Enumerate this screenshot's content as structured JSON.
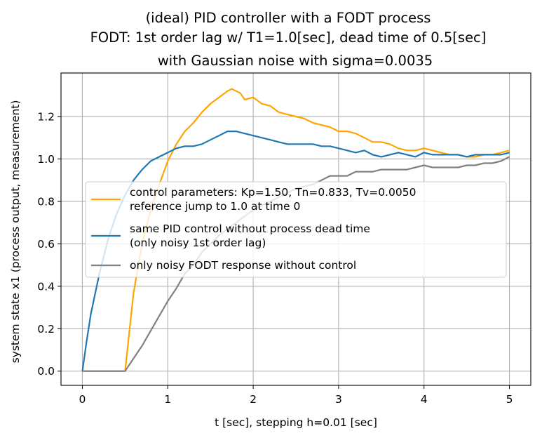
{
  "chart_data": {
    "type": "line",
    "title_lines": [
      "(ideal) PID controller with a FODT process",
      "FODT: 1st order lag w/ T1=1.0[sec], dead time of 0.5[sec]",
      "with Gaussian noise with sigma=0.0035"
    ],
    "xlabel": "t [sec], stepping h=0.01 [sec]",
    "ylabel": "system state x1 (process output, measurement)",
    "xlim": [
      -0.25,
      5.25
    ],
    "ylim": [
      -0.067,
      1.405
    ],
    "xticks": [
      0,
      1,
      2,
      3,
      4,
      5
    ],
    "xtick_labels": [
      "0",
      "1",
      "2",
      "3",
      "4",
      "5"
    ],
    "yticks": [
      0.0,
      0.2,
      0.4,
      0.6,
      0.8,
      1.0,
      1.2
    ],
    "ytick_labels": [
      "0.0",
      "0.2",
      "0.4",
      "0.6",
      "0.8",
      "1.0",
      "1.2"
    ],
    "grid": true,
    "legend_position": "center-right",
    "series": [
      {
        "name": "control parameters: Kp=1.50, Tn=0.833, Tv=0.0050\nreference jump to 1.0 at time 0",
        "color": "#ffa500",
        "points": [
          [
            0,
            0
          ],
          [
            0.5,
            0
          ],
          [
            0.6,
            0.37
          ],
          [
            0.7,
            0.6
          ],
          [
            0.8,
            0.76
          ],
          [
            0.9,
            0.88
          ],
          [
            1.0,
            0.99
          ],
          [
            1.1,
            1.07
          ],
          [
            1.2,
            1.13
          ],
          [
            1.3,
            1.17
          ],
          [
            1.4,
            1.22
          ],
          [
            1.5,
            1.26
          ],
          [
            1.6,
            1.29
          ],
          [
            1.7,
            1.32
          ],
          [
            1.75,
            1.33
          ],
          [
            1.8,
            1.32
          ],
          [
            1.85,
            1.31
          ],
          [
            1.9,
            1.28
          ],
          [
            2.0,
            1.29
          ],
          [
            2.1,
            1.26
          ],
          [
            2.2,
            1.25
          ],
          [
            2.3,
            1.22
          ],
          [
            2.4,
            1.21
          ],
          [
            2.5,
            1.2
          ],
          [
            2.6,
            1.19
          ],
          [
            2.7,
            1.17
          ],
          [
            2.8,
            1.16
          ],
          [
            2.9,
            1.15
          ],
          [
            3.0,
            1.13
          ],
          [
            3.1,
            1.13
          ],
          [
            3.2,
            1.12
          ],
          [
            3.3,
            1.1
          ],
          [
            3.4,
            1.08
          ],
          [
            3.5,
            1.08
          ],
          [
            3.6,
            1.07
          ],
          [
            3.7,
            1.05
          ],
          [
            3.8,
            1.04
          ],
          [
            3.9,
            1.04
          ],
          [
            4.0,
            1.05
          ],
          [
            4.1,
            1.04
          ],
          [
            4.2,
            1.03
          ],
          [
            4.3,
            1.02
          ],
          [
            4.4,
            1.02
          ],
          [
            4.5,
            1.01
          ],
          [
            4.6,
            1.01
          ],
          [
            4.7,
            1.02
          ],
          [
            4.8,
            1.02
          ],
          [
            4.9,
            1.03
          ],
          [
            5.0,
            1.04
          ]
        ]
      },
      {
        "name": "same PID control without process dead time\n(only noisy 1st order lag)",
        "color": "#1f77b4",
        "points": [
          [
            0,
            0
          ],
          [
            0.05,
            0.14
          ],
          [
            0.1,
            0.27
          ],
          [
            0.2,
            0.46
          ],
          [
            0.3,
            0.62
          ],
          [
            0.4,
            0.74
          ],
          [
            0.5,
            0.83
          ],
          [
            0.6,
            0.9
          ],
          [
            0.7,
            0.95
          ],
          [
            0.8,
            0.99
          ],
          [
            0.9,
            1.01
          ],
          [
            1.0,
            1.03
          ],
          [
            1.1,
            1.05
          ],
          [
            1.2,
            1.06
          ],
          [
            1.3,
            1.06
          ],
          [
            1.4,
            1.07
          ],
          [
            1.5,
            1.09
          ],
          [
            1.6,
            1.11
          ],
          [
            1.7,
            1.13
          ],
          [
            1.8,
            1.13
          ],
          [
            1.9,
            1.12
          ],
          [
            2.0,
            1.11
          ],
          [
            2.1,
            1.1
          ],
          [
            2.2,
            1.09
          ],
          [
            2.3,
            1.08
          ],
          [
            2.4,
            1.07
          ],
          [
            2.5,
            1.07
          ],
          [
            2.6,
            1.07
          ],
          [
            2.7,
            1.07
          ],
          [
            2.8,
            1.06
          ],
          [
            2.9,
            1.06
          ],
          [
            3.0,
            1.05
          ],
          [
            3.1,
            1.04
          ],
          [
            3.2,
            1.03
          ],
          [
            3.3,
            1.04
          ],
          [
            3.4,
            1.02
          ],
          [
            3.5,
            1.01
          ],
          [
            3.6,
            1.02
          ],
          [
            3.7,
            1.03
          ],
          [
            3.8,
            1.02
          ],
          [
            3.9,
            1.01
          ],
          [
            4.0,
            1.03
          ],
          [
            4.1,
            1.02
          ],
          [
            4.2,
            1.02
          ],
          [
            4.3,
            1.02
          ],
          [
            4.4,
            1.02
          ],
          [
            4.5,
            1.01
          ],
          [
            4.6,
            1.02
          ],
          [
            4.7,
            1.02
          ],
          [
            4.8,
            1.02
          ],
          [
            4.9,
            1.02
          ],
          [
            5.0,
            1.03
          ]
        ]
      },
      {
        "name": "only noisy FODT response without control",
        "color": "#808080",
        "points": [
          [
            0,
            0
          ],
          [
            0.5,
            0
          ],
          [
            0.6,
            0.06
          ],
          [
            0.7,
            0.12
          ],
          [
            0.8,
            0.19
          ],
          [
            0.9,
            0.26
          ],
          [
            1.0,
            0.33
          ],
          [
            1.1,
            0.39
          ],
          [
            1.2,
            0.46
          ],
          [
            1.3,
            0.5
          ],
          [
            1.4,
            0.56
          ],
          [
            1.5,
            0.6
          ],
          [
            1.6,
            0.64
          ],
          [
            1.7,
            0.67
          ],
          [
            1.8,
            0.7
          ],
          [
            1.9,
            0.73
          ],
          [
            2.0,
            0.76
          ],
          [
            2.1,
            0.78
          ],
          [
            2.2,
            0.8
          ],
          [
            2.3,
            0.82
          ],
          [
            2.4,
            0.84
          ],
          [
            2.5,
            0.86
          ],
          [
            2.6,
            0.87
          ],
          [
            2.7,
            0.88
          ],
          [
            2.8,
            0.9
          ],
          [
            2.9,
            0.92
          ],
          [
            3.0,
            0.92
          ],
          [
            3.1,
            0.92
          ],
          [
            3.2,
            0.94
          ],
          [
            3.3,
            0.94
          ],
          [
            3.4,
            0.94
          ],
          [
            3.5,
            0.95
          ],
          [
            3.6,
            0.95
          ],
          [
            3.7,
            0.95
          ],
          [
            3.8,
            0.95
          ],
          [
            3.9,
            0.96
          ],
          [
            4.0,
            0.97
          ],
          [
            4.1,
            0.96
          ],
          [
            4.2,
            0.96
          ],
          [
            4.3,
            0.96
          ],
          [
            4.4,
            0.96
          ],
          [
            4.5,
            0.97
          ],
          [
            4.6,
            0.97
          ],
          [
            4.7,
            0.98
          ],
          [
            4.8,
            0.98
          ],
          [
            4.9,
            0.99
          ],
          [
            5.0,
            1.01
          ]
        ]
      }
    ]
  }
}
